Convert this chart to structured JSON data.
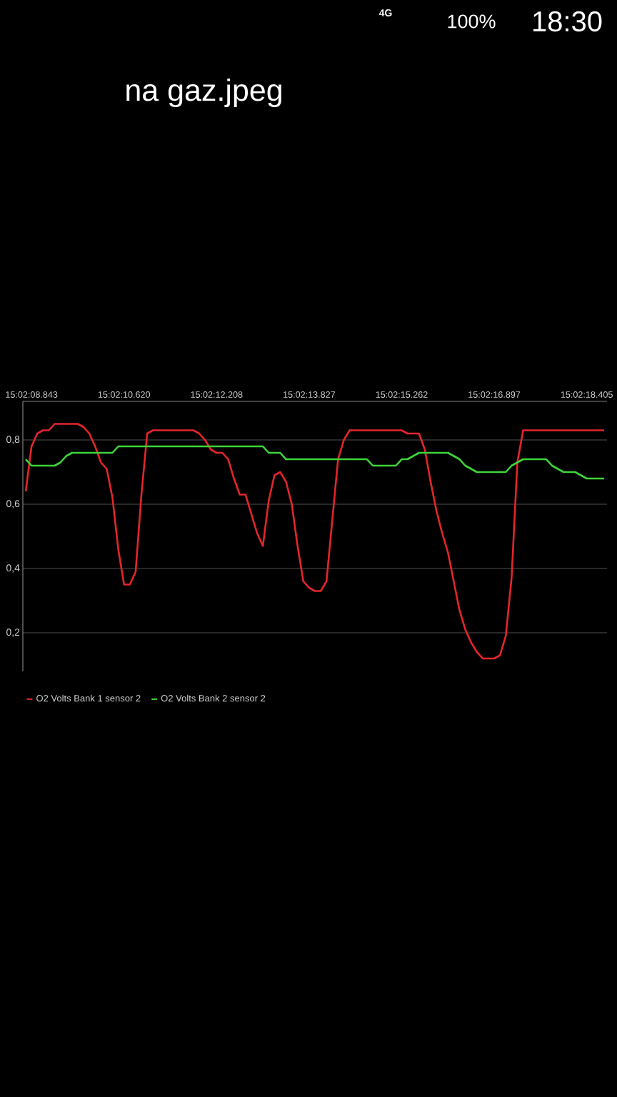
{
  "chart_data": {
    "type": "line",
    "title": "na gaz.jpeg",
    "annotations": [
      "4G",
      "100%",
      "18:30"
    ],
    "categories": [
      null,
      "15:02:08.843",
      null,
      null,
      null,
      null,
      null,
      null,
      null,
      null,
      null,
      null,
      null,
      null,
      null,
      null,
      null,
      "15:02:10.620",
      null,
      null,
      null,
      null,
      null,
      null,
      null,
      null,
      null,
      null,
      null,
      null,
      null,
      null,
      null,
      "15:02:12.208",
      null,
      null,
      null,
      null,
      null,
      null,
      null,
      null,
      null,
      null,
      null,
      null,
      null,
      null,
      null,
      "15:02:13.827",
      null,
      null,
      null,
      null,
      null,
      null,
      null,
      null,
      null,
      null,
      null,
      null,
      null,
      null,
      null,
      "15:02:15.262",
      null,
      null,
      null,
      null,
      null,
      null,
      null,
      null,
      null,
      null,
      null,
      null,
      null,
      null,
      null,
      "15:02:16.897",
      null,
      null,
      null,
      null,
      null,
      null,
      null,
      null,
      null,
      null,
      null,
      null,
      null,
      null,
      null,
      "15:02:18.405",
      null,
      null,
      null
    ],
    "ylim": [
      0.08,
      0.92
    ],
    "yticks": [
      {
        "value": 0.2,
        "label": "0,2"
      },
      {
        "value": 0.4,
        "label": "0,4"
      },
      {
        "value": 0.6,
        "label": "0,6"
      },
      {
        "value": 0.8,
        "label": "0,8"
      }
    ],
    "grid": "y",
    "legend": "bottom left",
    "series": [
      {
        "name": "O2 Volts Bank 1 sensor 2",
        "color": "#e3262a",
        "values": [
          0.64,
          0.78,
          0.82,
          0.83,
          0.83,
          0.85,
          0.85,
          0.85,
          0.85,
          0.85,
          0.84,
          0.82,
          0.78,
          0.73,
          0.71,
          0.62,
          0.46,
          0.35,
          0.35,
          0.39,
          0.63,
          0.82,
          0.83,
          0.83,
          0.83,
          0.83,
          0.83,
          0.83,
          0.83,
          0.83,
          0.82,
          0.8,
          0.77,
          0.76,
          0.76,
          0.74,
          0.68,
          0.63,
          0.63,
          0.57,
          0.51,
          0.47,
          0.61,
          0.69,
          0.7,
          0.67,
          0.6,
          0.47,
          0.36,
          0.34,
          0.33,
          0.33,
          0.36,
          0.55,
          0.74,
          0.8,
          0.83,
          0.83,
          0.83,
          0.83,
          0.83,
          0.83,
          0.83,
          0.83,
          0.83,
          0.83,
          0.82,
          0.82,
          0.82,
          0.77,
          0.67,
          0.58,
          0.51,
          0.45,
          0.36,
          0.27,
          0.21,
          0.17,
          0.14,
          0.12,
          0.12,
          0.12,
          0.13,
          0.19,
          0.37,
          0.73,
          0.83,
          0.83,
          0.83,
          0.83,
          0.83,
          0.83,
          0.83,
          0.83,
          0.83,
          0.83,
          0.83,
          0.83,
          0.83,
          0.83,
          0.83
        ]
      },
      {
        "name": "O2 Volts Bank 2 sensor 2",
        "color": "#3ed43a",
        "values": [
          0.74,
          0.72,
          0.72,
          0.72,
          0.72,
          0.72,
          0.73,
          0.75,
          0.76,
          0.76,
          0.76,
          0.76,
          0.76,
          0.76,
          0.76,
          0.76,
          0.78,
          0.78,
          0.78,
          0.78,
          0.78,
          0.78,
          0.78,
          0.78,
          0.78,
          0.78,
          0.78,
          0.78,
          0.78,
          0.78,
          0.78,
          0.78,
          0.78,
          0.78,
          0.78,
          0.78,
          0.78,
          0.78,
          0.78,
          0.78,
          0.78,
          0.78,
          0.76,
          0.76,
          0.76,
          0.74,
          0.74,
          0.74,
          0.74,
          0.74,
          0.74,
          0.74,
          0.74,
          0.74,
          0.74,
          0.74,
          0.74,
          0.74,
          0.74,
          0.74,
          0.72,
          0.72,
          0.72,
          0.72,
          0.72,
          0.74,
          0.74,
          0.75,
          0.76,
          0.76,
          0.76,
          0.76,
          0.76,
          0.76,
          0.75,
          0.74,
          0.72,
          0.71,
          0.7,
          0.7,
          0.7,
          0.7,
          0.7,
          0.7,
          0.72,
          0.73,
          0.74,
          0.74,
          0.74,
          0.74,
          0.74,
          0.72,
          0.71,
          0.7,
          0.7,
          0.7,
          0.69,
          0.68,
          0.68,
          0.68,
          0.68
        ]
      }
    ]
  }
}
